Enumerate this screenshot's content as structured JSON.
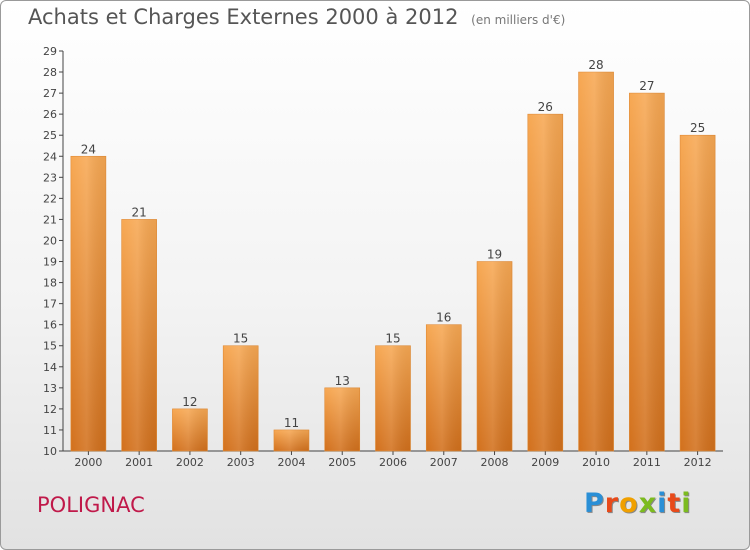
{
  "title": "Achats et Charges Externes 2000 à 2012",
  "subtitle": "(en milliers d'€)",
  "commune": "POLIGNAC",
  "logo": {
    "letters": [
      "P",
      "r",
      "o",
      "x",
      "i",
      "t",
      "i"
    ],
    "colors": [
      "#2a8fd6",
      "#e84a1a",
      "#f0a000",
      "#7cbb1f",
      "#2a8fd6",
      "#e84a1a",
      "#7cbb1f"
    ]
  },
  "chart_data": {
    "type": "bar",
    "categories": [
      "2000",
      "2001",
      "2002",
      "2003",
      "2004",
      "2005",
      "2006",
      "2007",
      "2008",
      "2009",
      "2010",
      "2011",
      "2012"
    ],
    "values": [
      24,
      21,
      12,
      15,
      11,
      13,
      15,
      16,
      19,
      26,
      28,
      27,
      25
    ],
    "ylim": [
      10,
      29
    ],
    "yticks": [
      10,
      11,
      12,
      13,
      14,
      15,
      16,
      17,
      18,
      19,
      20,
      21,
      22,
      23,
      24,
      25,
      26,
      27,
      28,
      29
    ],
    "grid": false,
    "bar_color": "#f39c45"
  }
}
